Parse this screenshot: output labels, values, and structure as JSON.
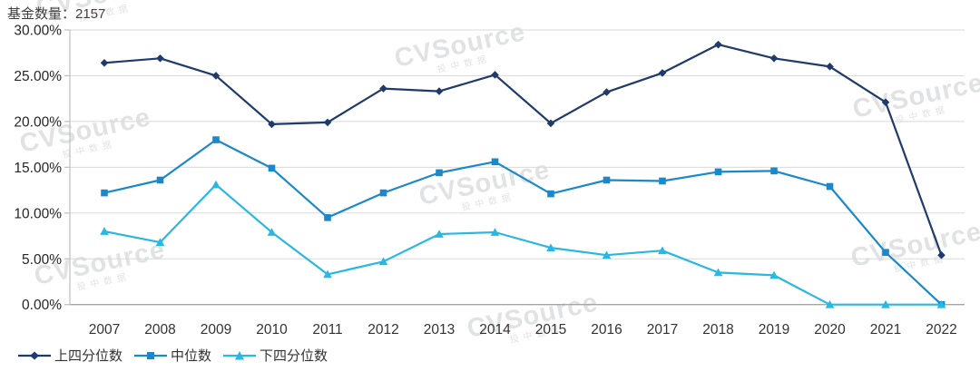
{
  "watermark": {
    "brand": "CVSource",
    "sub": "投中数据"
  },
  "chart_data": {
    "type": "line",
    "title": "基金数量：2157",
    "categories": [
      "2007",
      "2008",
      "2009",
      "2010",
      "2011",
      "2012",
      "2013",
      "2014",
      "2015",
      "2016",
      "2017",
      "2018",
      "2019",
      "2020",
      "2021",
      "2022"
    ],
    "series": [
      {
        "key": "upper-quartile",
        "name": "上四分位数",
        "marker": "diamond",
        "color": "#1f3a6b",
        "values": [
          26.4,
          26.9,
          25.0,
          19.7,
          19.9,
          23.6,
          23.3,
          25.1,
          19.8,
          23.2,
          25.3,
          28.4,
          26.9,
          26.0,
          22.1,
          5.4
        ]
      },
      {
        "key": "median",
        "name": "中位数",
        "marker": "square",
        "color": "#1b89c9",
        "values": [
          12.2,
          13.6,
          18.0,
          14.9,
          9.5,
          12.2,
          14.4,
          15.6,
          12.1,
          13.6,
          13.5,
          14.5,
          14.6,
          12.9,
          5.7,
          0.0
        ]
      },
      {
        "key": "lower-quartile",
        "name": "下四分位数",
        "marker": "triangle",
        "color": "#29b7e3",
        "values": [
          8.0,
          6.8,
          13.1,
          7.9,
          3.3,
          4.7,
          7.7,
          7.9,
          6.2,
          5.4,
          5.9,
          3.5,
          3.2,
          0.0,
          0.0,
          0.0
        ]
      }
    ],
    "ylim": [
      0,
      30
    ],
    "yticks": [
      0,
      5,
      10,
      15,
      20,
      25,
      30
    ],
    "ytick_labels": [
      "0.00%",
      "5.00%",
      "10.00%",
      "15.00%",
      "20.00%",
      "25.00%",
      "30.00%"
    ],
    "grid": true,
    "legend_position": "bottom-left",
    "grid_color": "#d9d9d9",
    "axis_color": "#a6a6a6",
    "tick_color": "#bfbfbf"
  }
}
